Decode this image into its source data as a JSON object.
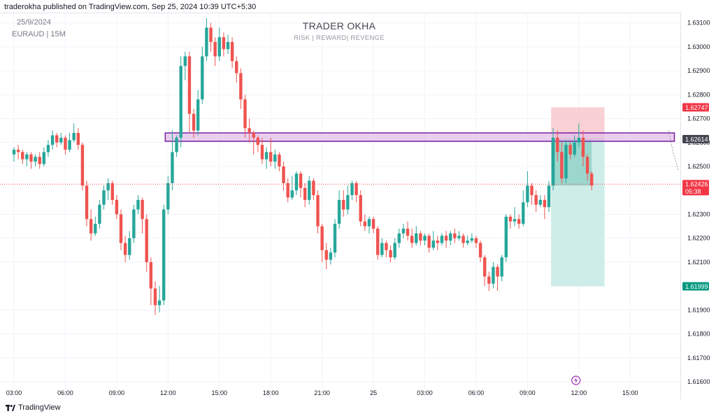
{
  "header": {
    "publisher": "traderokha published on TradingView.com, Sep 25, 2024 10:39 UTC+5:30",
    "date": "25/9/2024",
    "symbol": "EURAUD | 15M",
    "watermark_title": "TRADER OKHA",
    "watermark_subtitle": "RISK | REWARD| REVENGE"
  },
  "footer": {
    "logo_icon": "tradingview-logo-icon",
    "brand": "TradingView"
  },
  "colors": {
    "up": "#26a69a",
    "down": "#ef5350",
    "zone_fill": "#e1bee7",
    "zone_border": "#7b1fa2",
    "stop_fill": "#f8c9cd",
    "target_fill": "#c9ebe5",
    "target_fill_active": "#8fd1c6",
    "label_red": "#f23645",
    "label_green": "#089981",
    "label_gray": "#434651",
    "grid": "#f0f3fa",
    "price_line": "#ef5350"
  },
  "chart_data": {
    "type": "candlestick",
    "title": "",
    "xlabel": "",
    "ylabel": "",
    "ylim": [
      1.6153,
      1.6314
    ],
    "grid": true,
    "y_ticks": [
      {
        "value": 1.631,
        "label": "1.63100"
      },
      {
        "value": 1.63,
        "label": "1.63000"
      },
      {
        "value": 1.629,
        "label": "1.62900"
      },
      {
        "value": 1.628,
        "label": "1.62800"
      },
      {
        "value": 1.627,
        "label": "1.62700"
      },
      {
        "value": 1.626,
        "label": "1.62600"
      },
      {
        "value": 1.625,
        "label": "1.62500"
      },
      {
        "value": 1.623,
        "label": "1.62300"
      },
      {
        "value": 1.622,
        "label": "1.62200"
      },
      {
        "value": 1.621,
        "label": "1.62100"
      },
      {
        "value": 1.619,
        "label": "1.61900"
      },
      {
        "value": 1.618,
        "label": "1.61800"
      },
      {
        "value": 1.617,
        "label": "1.61700"
      },
      {
        "value": 1.616,
        "label": "1.61600"
      }
    ],
    "x_ticks": [
      {
        "bar": 0,
        "label": "03:00"
      },
      {
        "bar": 12,
        "label": "06:00"
      },
      {
        "bar": 24,
        "label": "09:00"
      },
      {
        "bar": 36,
        "label": "12:00"
      },
      {
        "bar": 48,
        "label": "15:00"
      },
      {
        "bar": 60,
        "label": "18:00"
      },
      {
        "bar": 72,
        "label": "21:00"
      },
      {
        "bar": 84,
        "label": "25"
      },
      {
        "bar": 96,
        "label": "03:00"
      },
      {
        "bar": 108,
        "label": "06:00"
      },
      {
        "bar": 120,
        "label": "09:00"
      },
      {
        "bar": 132,
        "label": "12:00"
      },
      {
        "bar": 144,
        "label": "15:00"
      }
    ],
    "candles": [
      [
        1.6255,
        1.6257,
        1.6252,
        1.6258
      ],
      [
        1.6257,
        1.6256,
        1.6253,
        1.6259
      ],
      [
        1.6256,
        1.6253,
        1.6251,
        1.6257
      ],
      [
        1.6253,
        1.6255,
        1.625,
        1.6256
      ],
      [
        1.6255,
        1.6252,
        1.6249,
        1.6256
      ],
      [
        1.6252,
        1.6254,
        1.625,
        1.6255
      ],
      [
        1.6254,
        1.6251,
        1.6249,
        1.6256
      ],
      [
        1.6251,
        1.6256,
        1.625,
        1.6258
      ],
      [
        1.6256,
        1.6259,
        1.6254,
        1.6261
      ],
      [
        1.6259,
        1.6263,
        1.6257,
        1.6265
      ],
      [
        1.6263,
        1.626,
        1.6258,
        1.6264
      ],
      [
        1.626,
        1.6262,
        1.6259,
        1.6264
      ],
      [
        1.6262,
        1.6257,
        1.6255,
        1.6263
      ],
      [
        1.6257,
        1.6261,
        1.6256,
        1.6264
      ],
      [
        1.6261,
        1.6264,
        1.626,
        1.6268
      ],
      [
        1.6264,
        1.6259,
        1.6257,
        1.6266
      ],
      [
        1.6259,
        1.6242,
        1.624,
        1.626
      ],
      [
        1.6242,
        1.6228,
        1.6225,
        1.6244
      ],
      [
        1.6228,
        1.6222,
        1.6219,
        1.6232
      ],
      [
        1.6222,
        1.6226,
        1.6221,
        1.6229
      ],
      [
        1.6226,
        1.6234,
        1.6224,
        1.6236
      ],
      [
        1.6234,
        1.624,
        1.6232,
        1.6242
      ],
      [
        1.624,
        1.6243,
        1.6236,
        1.6245
      ],
      [
        1.6243,
        1.6236,
        1.6234,
        1.6244
      ],
      [
        1.6236,
        1.623,
        1.6228,
        1.6238
      ],
      [
        1.623,
        1.6218,
        1.6215,
        1.6232
      ],
      [
        1.6218,
        1.6213,
        1.621,
        1.6221
      ],
      [
        1.6213,
        1.622,
        1.6211,
        1.6223
      ],
      [
        1.622,
        1.6232,
        1.6218,
        1.6234
      ],
      [
        1.6232,
        1.6236,
        1.623,
        1.6238
      ],
      [
        1.6236,
        1.6228,
        1.6222,
        1.6237
      ],
      [
        1.6228,
        1.621,
        1.6206,
        1.623
      ],
      [
        1.621,
        1.6199,
        1.6192,
        1.6212
      ],
      [
        1.6199,
        1.6192,
        1.6188,
        1.6202
      ],
      [
        1.6192,
        1.6194,
        1.6189,
        1.62
      ],
      [
        1.6194,
        1.6232,
        1.6192,
        1.6234
      ],
      [
        1.6232,
        1.6243,
        1.623,
        1.6246
      ],
      [
        1.6243,
        1.6256,
        1.624,
        1.6265
      ],
      [
        1.6256,
        1.6262,
        1.6254,
        1.6263
      ],
      [
        1.6262,
        1.6292,
        1.6258,
        1.6296
      ],
      [
        1.6292,
        1.6296,
        1.6286,
        1.6298
      ],
      [
        1.6296,
        1.6272,
        1.6264,
        1.6298
      ],
      [
        1.6272,
        1.6265,
        1.6262,
        1.6274
      ],
      [
        1.6265,
        1.6278,
        1.6263,
        1.6282
      ],
      [
        1.6278,
        1.6296,
        1.6276,
        1.63
      ],
      [
        1.6296,
        1.6308,
        1.6294,
        1.6312
      ],
      [
        1.6308,
        1.6302,
        1.6298,
        1.631
      ],
      [
        1.6302,
        1.6296,
        1.6292,
        1.6304
      ],
      [
        1.6296,
        1.6304,
        1.6294,
        1.6308
      ],
      [
        1.6304,
        1.6299,
        1.6296,
        1.6306
      ],
      [
        1.6299,
        1.6302,
        1.6297,
        1.6305
      ],
      [
        1.6302,
        1.6294,
        1.6291,
        1.6304
      ],
      [
        1.6294,
        1.6289,
        1.6285,
        1.6296
      ],
      [
        1.6289,
        1.6278,
        1.6274,
        1.6291
      ],
      [
        1.6278,
        1.6266,
        1.6262,
        1.628
      ],
      [
        1.6266,
        1.6264,
        1.626,
        1.627
      ],
      [
        1.6264,
        1.6262,
        1.6255,
        1.6265
      ],
      [
        1.6262,
        1.6259,
        1.6256,
        1.6263
      ],
      [
        1.6259,
        1.6253,
        1.6251,
        1.6262
      ],
      [
        1.6253,
        1.6256,
        1.6249,
        1.6258
      ],
      [
        1.6256,
        1.6252,
        1.625,
        1.6262
      ],
      [
        1.6252,
        1.6255,
        1.6249,
        1.6257
      ],
      [
        1.6255,
        1.625,
        1.6248,
        1.6256
      ],
      [
        1.625,
        1.6243,
        1.624,
        1.6252
      ],
      [
        1.6243,
        1.6237,
        1.6235,
        1.6245
      ],
      [
        1.6237,
        1.624,
        1.6236,
        1.6246
      ],
      [
        1.624,
        1.6247,
        1.6238,
        1.6248
      ],
      [
        1.6247,
        1.6241,
        1.6237,
        1.6248
      ],
      [
        1.6241,
        1.6236,
        1.6233,
        1.6243
      ],
      [
        1.6236,
        1.6244,
        1.6234,
        1.6246
      ],
      [
        1.6244,
        1.6238,
        1.6236,
        1.6245
      ],
      [
        1.6238,
        1.6225,
        1.6222,
        1.624
      ],
      [
        1.6225,
        1.6215,
        1.621,
        1.6226
      ],
      [
        1.6215,
        1.6211,
        1.6207,
        1.6218
      ],
      [
        1.6211,
        1.6214,
        1.6209,
        1.6216
      ],
      [
        1.6214,
        1.6226,
        1.6212,
        1.6228
      ],
      [
        1.6226,
        1.6236,
        1.6224,
        1.624
      ],
      [
        1.6236,
        1.6232,
        1.6229,
        1.624
      ],
      [
        1.6232,
        1.6238,
        1.623,
        1.6242
      ],
      [
        1.6238,
        1.6243,
        1.6236,
        1.6244
      ],
      [
        1.6243,
        1.6238,
        1.6235,
        1.6244
      ],
      [
        1.6238,
        1.6227,
        1.6225,
        1.624
      ],
      [
        1.6227,
        1.6225,
        1.6223,
        1.623
      ],
      [
        1.6225,
        1.6228,
        1.6222,
        1.6229
      ],
      [
        1.6228,
        1.6224,
        1.6222,
        1.6229
      ],
      [
        1.6224,
        1.6213,
        1.6211,
        1.6225
      ],
      [
        1.6213,
        1.6218,
        1.6212,
        1.622
      ],
      [
        1.6218,
        1.6215,
        1.6212,
        1.6219
      ],
      [
        1.6215,
        1.6212,
        1.621,
        1.6217
      ],
      [
        1.6212,
        1.6218,
        1.6211,
        1.622
      ],
      [
        1.6218,
        1.6222,
        1.6216,
        1.6224
      ],
      [
        1.6222,
        1.6224,
        1.622,
        1.6226
      ],
      [
        1.6224,
        1.6221,
        1.6219,
        1.6227
      ],
      [
        1.6221,
        1.6218,
        1.6216,
        1.6224
      ],
      [
        1.6218,
        1.6222,
        1.6217,
        1.6225
      ],
      [
        1.6222,
        1.6219,
        1.6217,
        1.6223
      ],
      [
        1.6219,
        1.6221,
        1.6217,
        1.6222
      ],
      [
        1.6221,
        1.6216,
        1.6214,
        1.6222
      ],
      [
        1.6216,
        1.6219,
        1.6215,
        1.6223
      ],
      [
        1.6219,
        1.6218,
        1.6215,
        1.6221
      ],
      [
        1.6218,
        1.6221,
        1.6217,
        1.6222
      ],
      [
        1.6221,
        1.6219,
        1.6216,
        1.6223
      ],
      [
        1.6219,
        1.6222,
        1.6217,
        1.6223
      ],
      [
        1.6222,
        1.622,
        1.6218,
        1.6224
      ],
      [
        1.622,
        1.6221,
        1.6219,
        1.6223
      ],
      [
        1.6221,
        1.6218,
        1.6216,
        1.6222
      ],
      [
        1.6218,
        1.6219,
        1.6217,
        1.6221
      ],
      [
        1.6219,
        1.622,
        1.6218,
        1.6222
      ],
      [
        1.622,
        1.6218,
        1.6216,
        1.6221
      ],
      [
        1.6218,
        1.6212,
        1.621,
        1.6219
      ],
      [
        1.6212,
        1.6204,
        1.62,
        1.6213
      ],
      [
        1.6204,
        1.6201,
        1.6198,
        1.6206
      ],
      [
        1.6201,
        1.6208,
        1.6199,
        1.621
      ],
      [
        1.6208,
        1.6204,
        1.6198,
        1.6209
      ],
      [
        1.6204,
        1.6212,
        1.6202,
        1.6213
      ],
      [
        1.6212,
        1.6229,
        1.621,
        1.623
      ],
      [
        1.6229,
        1.6227,
        1.6224,
        1.623
      ],
      [
        1.6227,
        1.6228,
        1.6225,
        1.6233
      ],
      [
        1.6228,
        1.6226,
        1.6224,
        1.623
      ],
      [
        1.6226,
        1.6235,
        1.6225,
        1.624
      ],
      [
        1.6235,
        1.6242,
        1.6233,
        1.6248
      ],
      [
        1.6242,
        1.6238,
        1.6234,
        1.6243
      ],
      [
        1.6238,
        1.6234,
        1.6231,
        1.624
      ],
      [
        1.6234,
        1.6236,
        1.6233,
        1.6238
      ],
      [
        1.6236,
        1.6233,
        1.6228,
        1.6238
      ],
      [
        1.6233,
        1.6242,
        1.6231,
        1.6244
      ],
      [
        1.6242,
        1.6262,
        1.624,
        1.6266
      ],
      [
        1.6262,
        1.6256,
        1.6252,
        1.6265
      ],
      [
        1.6256,
        1.6245,
        1.6243,
        1.626
      ],
      [
        1.6245,
        1.6259,
        1.6243,
        1.6261
      ],
      [
        1.6259,
        1.6255,
        1.6253,
        1.626
      ],
      [
        1.6255,
        1.626,
        1.6254,
        1.6263
      ],
      [
        1.626,
        1.6262,
        1.6258,
        1.6268
      ],
      [
        1.6262,
        1.6254,
        1.625,
        1.6265
      ],
      [
        1.6254,
        1.6247,
        1.6244,
        1.6255
      ],
      [
        1.6247,
        1.6242,
        1.624,
        1.6248
      ]
    ],
    "resistance_zone": {
      "low": 1.62605,
      "high": 1.6264,
      "from_bar": 36,
      "to_bar": 154
    },
    "short_position": {
      "entry": 1.62614,
      "stop": 1.62747,
      "target": 1.61999,
      "from_bar": 126,
      "to_bar": 138
    },
    "current_price_line": 1.62426,
    "price_labels": [
      {
        "value": 1.62747,
        "text": "1.62747",
        "color": "red"
      },
      {
        "value": 1.62614,
        "text": "1.62614",
        "color": "gray"
      },
      {
        "value": 1.62426,
        "text": "1.62426",
        "sub": "05:38",
        "color": "red"
      },
      {
        "value": 1.61999,
        "text": "1.61999",
        "color": "green"
      }
    ],
    "event_marker": {
      "bar": 131,
      "icon": "lightning-icon"
    }
  }
}
